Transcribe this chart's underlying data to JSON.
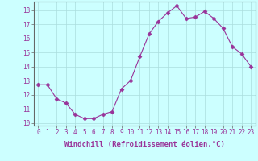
{
  "x": [
    0,
    1,
    2,
    3,
    4,
    5,
    6,
    7,
    8,
    9,
    10,
    11,
    12,
    13,
    14,
    15,
    16,
    17,
    18,
    19,
    20,
    21,
    22,
    23
  ],
  "y": [
    12.7,
    12.7,
    11.7,
    11.4,
    10.6,
    10.3,
    10.3,
    10.6,
    10.8,
    12.4,
    13.0,
    14.7,
    16.3,
    17.2,
    17.8,
    18.3,
    17.4,
    17.5,
    17.9,
    17.4,
    16.7,
    15.4,
    14.9,
    14.0
  ],
  "line_color": "#993399",
  "marker": "D",
  "marker_size": 2.5,
  "background_color": "#ccffff",
  "grid_color": "#aadddd",
  "xlabel": "Windchill (Refroidissement éolien,°C)",
  "ylim": [
    9.8,
    18.6
  ],
  "xlim": [
    -0.5,
    23.5
  ],
  "yticks": [
    10,
    11,
    12,
    13,
    14,
    15,
    16,
    17,
    18
  ],
  "xticks": [
    0,
    1,
    2,
    3,
    4,
    5,
    6,
    7,
    8,
    9,
    10,
    11,
    12,
    13,
    14,
    15,
    16,
    17,
    18,
    19,
    20,
    21,
    22,
    23
  ],
  "tick_label_fontsize": 5.5,
  "xlabel_fontsize": 6.5,
  "axis_color": "#993399",
  "spine_color": "#666666",
  "fig_width": 3.2,
  "fig_height": 2.0,
  "dpi": 100
}
